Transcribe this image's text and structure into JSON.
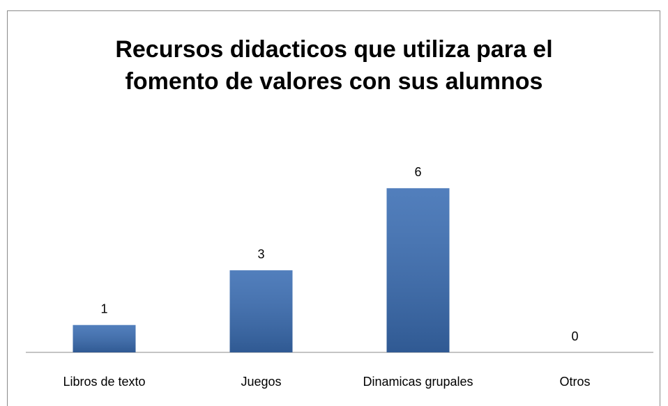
{
  "chart_data": {
    "type": "bar",
    "title": "Recursos didacticos que utiliza para el fomento de valores con sus alumnos",
    "categories": [
      "Libros de texto",
      "Juegos",
      "Dinamicas grupales",
      "Otros"
    ],
    "values": [
      1,
      3,
      6,
      0
    ],
    "color": "#3a6db3",
    "ylim": [
      0,
      7
    ]
  }
}
